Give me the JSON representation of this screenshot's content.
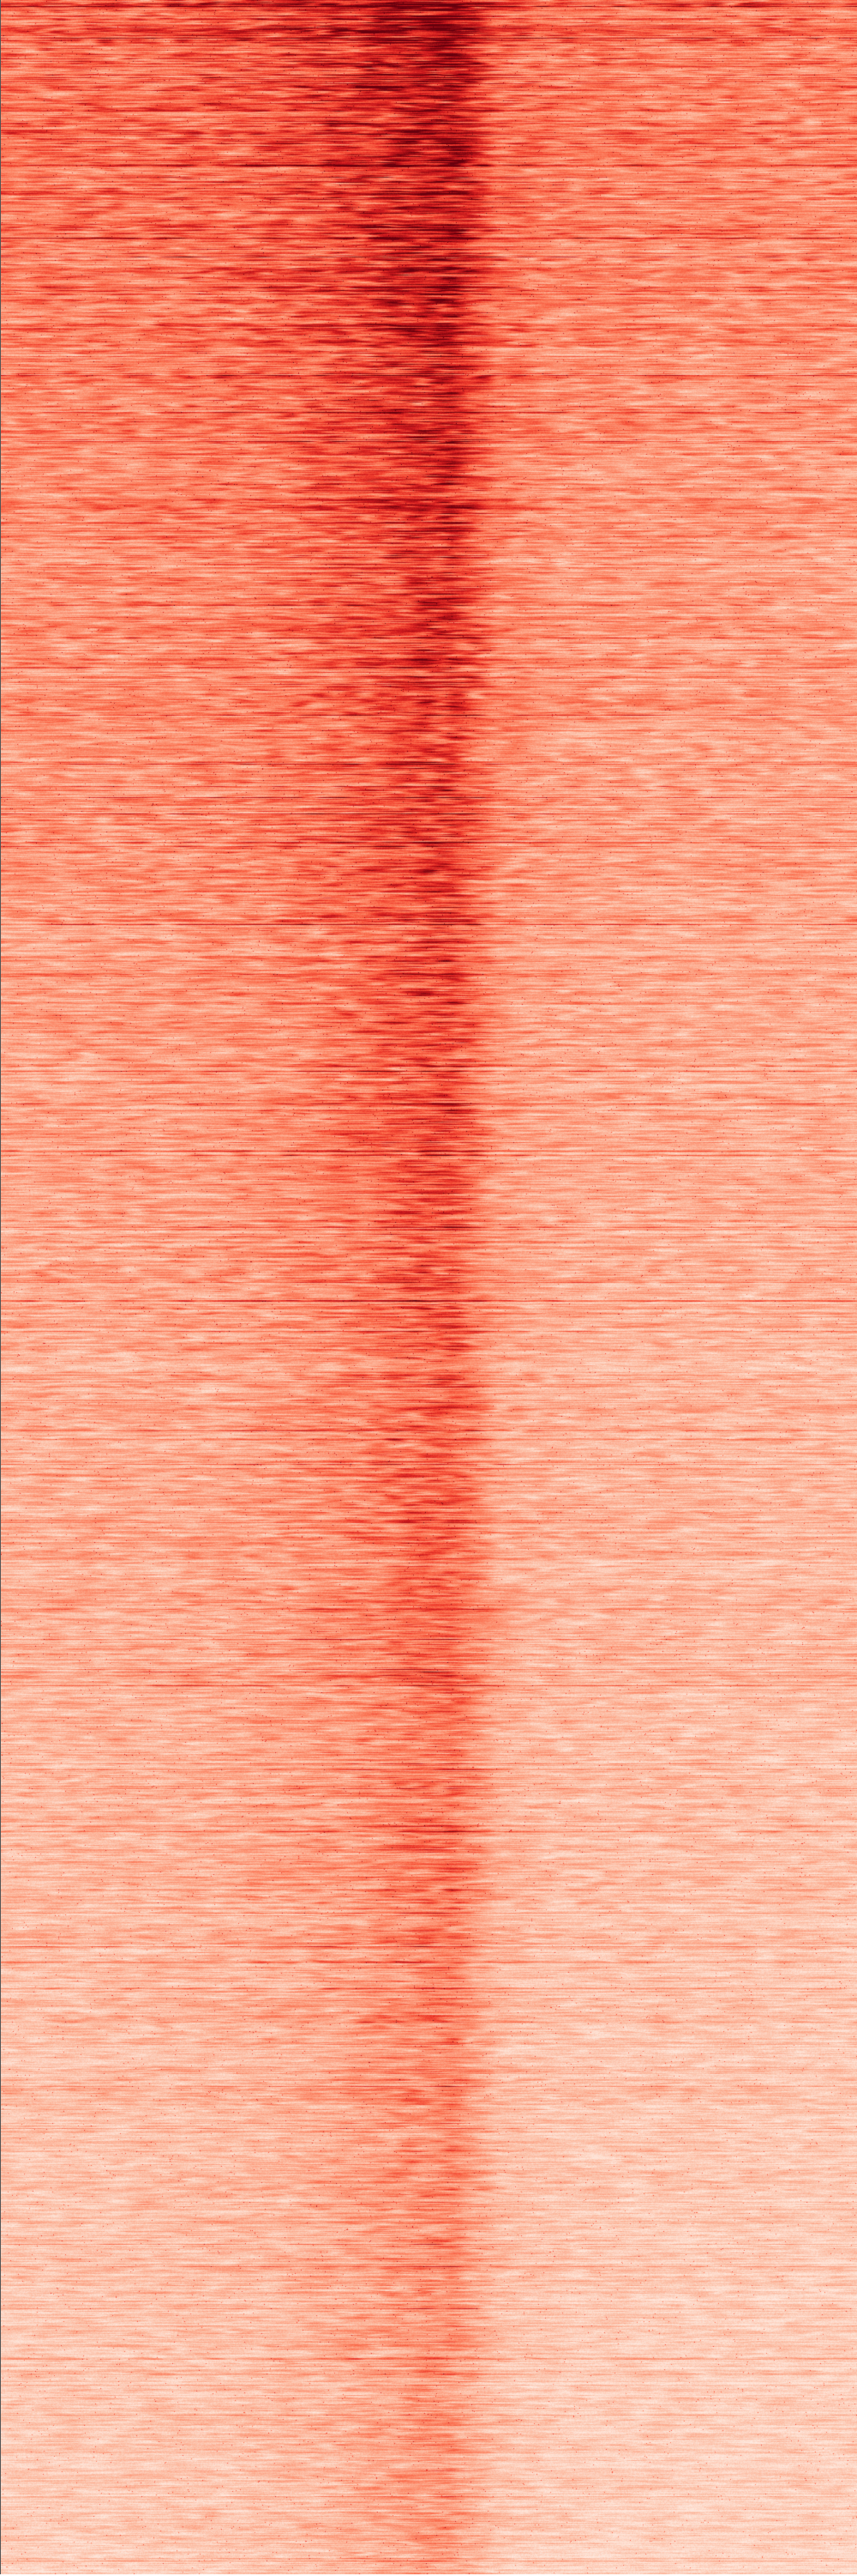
{
  "chart_data": {
    "type": "heatmap",
    "title": "",
    "xlabel": "",
    "ylabel": "",
    "colormap": "Reds",
    "colors": [
      "#fff5f0",
      "#fee0d2",
      "#fcbba1",
      "#fc9272",
      "#fb6a4a",
      "#ef3b2c",
      "#cb181d",
      "#a50f15",
      "#67000d"
    ],
    "rows_sorted_by_signal": "descending",
    "column_profile_relative": [
      0.55,
      0.56,
      0.57,
      0.58,
      0.6,
      0.62,
      0.66,
      0.72,
      0.8,
      0.92,
      1.0,
      0.62,
      0.55,
      0.53,
      0.52,
      0.52,
      0.51,
      0.51,
      0.5,
      0.5
    ],
    "row_trend_relative": [
      1.0,
      0.85,
      0.75,
      0.68,
      0.62,
      0.57,
      0.52,
      0.47,
      0.42,
      0.36
    ]
  }
}
